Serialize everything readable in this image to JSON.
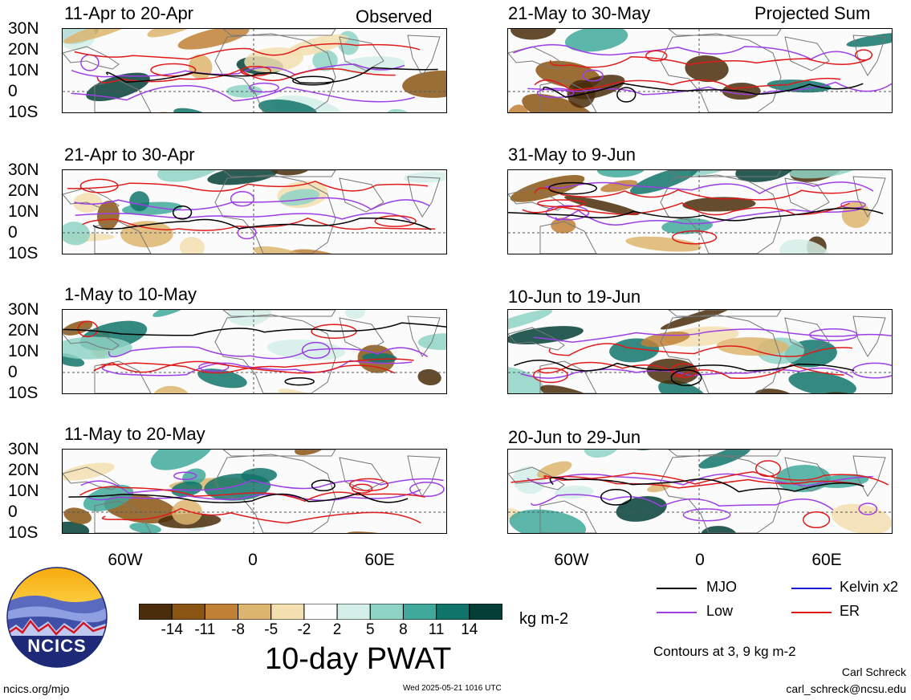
{
  "tags": {
    "observed": "Observed",
    "projected": "Projected Sum"
  },
  "panels": [
    {
      "id": "p1",
      "title": "11-Apr to 20-Apr"
    },
    {
      "id": "p2",
      "title": "21-Apr to 30-Apr"
    },
    {
      "id": "p3",
      "title": "1-May to 10-May"
    },
    {
      "id": "p4",
      "title": "11-May to 20-May"
    },
    {
      "id": "p5",
      "title": "21-May to 30-May"
    },
    {
      "id": "p6",
      "title": "31-May to 9-Jun"
    },
    {
      "id": "p7",
      "title": "10-Jun to 19-Jun"
    },
    {
      "id": "p8",
      "title": "20-Jun to 29-Jun"
    }
  ],
  "lat_labels": [
    "30N",
    "20N",
    "10N",
    "0",
    "10S"
  ],
  "lon_labels": [
    "60W",
    "0",
    "60E"
  ],
  "colorbar": {
    "title": "10-day PWAT",
    "units": "kg m-2",
    "tick_labels": [
      "-14",
      "-11",
      "-8",
      "-5",
      "-2",
      "2",
      "5",
      "8",
      "11",
      "14"
    ],
    "colors": [
      "#4a2d0a",
      "#8a5512",
      "#c08035",
      "#ddb56e",
      "#f3dfaf",
      "#fdfdfd",
      "#d3efe8",
      "#8fd3c6",
      "#41a99b",
      "#11746a",
      "#033f37"
    ]
  },
  "legend": [
    {
      "label": "MJO",
      "color": "#000000"
    },
    {
      "label": "Kelvin x2",
      "color": "#1a1adb"
    },
    {
      "label": "Low",
      "color": "#9d3ee6"
    },
    {
      "label": "ER",
      "color": "#e01a1a"
    }
  ],
  "contour_note": "Contours at 3, 9 kg m-2",
  "credits": {
    "logo_text": "NCICS",
    "url": "ncics.org/mjo",
    "timestamp": "Wed 2025-05-21 1016 UTC",
    "author": "Carl Schreck",
    "email": "carl_schreck@ncsu.edu"
  }
}
